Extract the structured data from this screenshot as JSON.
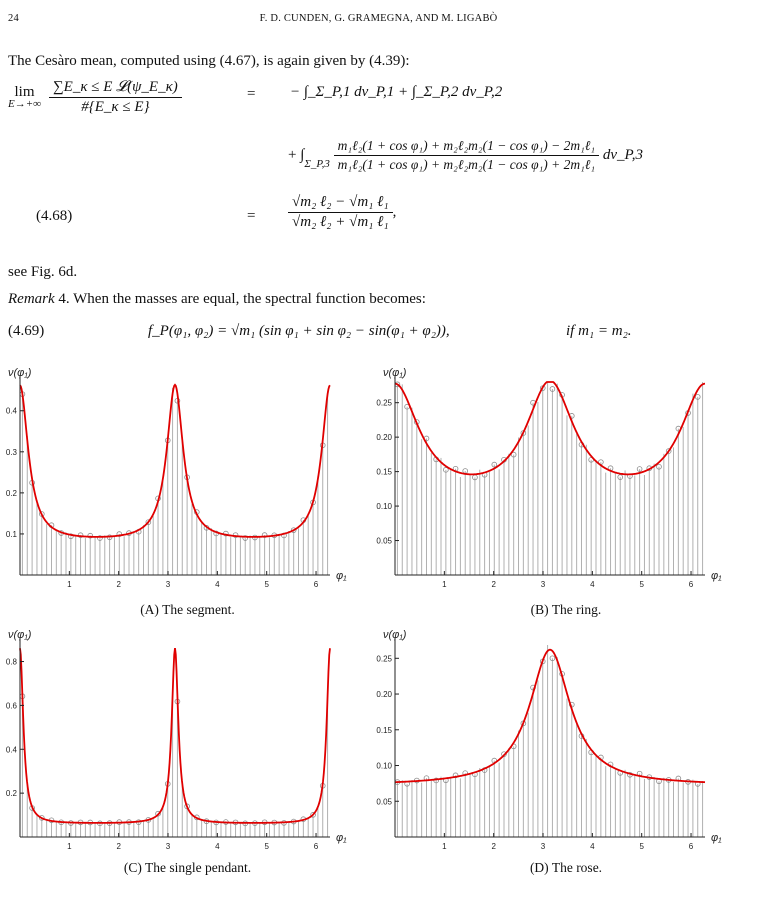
{
  "header": {
    "page_number": "24",
    "running_title": "F. D. CUNDEN, G. GRAMEGNA, AND M. LIGABÒ"
  },
  "text": {
    "intro": "The Cesàro mean, computed using (4.67), is again given by (4.39):",
    "see_fig": "see Fig. 6d.",
    "remark_label": "Remark",
    "remark_number": "4.",
    "remark_text": "When the masses are equal, the spectral function becomes:"
  },
  "equations": {
    "eq468": {
      "number": "(4.68)",
      "lim": "lim",
      "lim_sub": "E→+∞",
      "lhs_num": "∑E_κ ≤ E 𝓛(ψ_E_κ)",
      "lhs_den": "#{E_κ ≤ E}",
      "eq": "=",
      "term1": "− ∫_Σ_P,1 dν_P,1 + ∫_Σ_P,2 dν_P,2",
      "term2_num": "m₁ℓ₂(1 + cos φ₁) + m₂ℓ₂m₂(1 − cos φ₁) − 2m₁ℓ₁",
      "term2_den": "m₁ℓ₂(1 + cos φ₁) + m₂ℓ₂m₂(1 − cos φ₁) + 2m₁ℓ₁",
      "term2_tail": "dν_P,3",
      "result_num": "√m₂ ℓ₂ − √m₁ ℓ₁",
      "result_den": "√m₂ ℓ₂ + √m₁ ℓ₁"
    },
    "eq469": {
      "number": "(4.69)",
      "body": "f_P(φ₁, φ₂) = √m₁ (sin φ₁ + sin φ₂ − sin(φ₁ + φ₂)),",
      "condition": "if m₁ = m₂."
    }
  },
  "figures": {
    "y_axis_label": "ν(φ₁)",
    "x_axis_label": "φ₁",
    "captions": {
      "a_label": "(A)",
      "a_text": "The segment.",
      "b_label": "(B)",
      "b_text": "The ring.",
      "c_label": "(C)",
      "c_text": "The single pendant.",
      "d_label": "(D)",
      "d_text": "The rose."
    }
  },
  "chart_data": [
    {
      "type": "bar",
      "name": "segment",
      "xlabel": "φ₁",
      "ylabel": "ν(φ₁)",
      "xlim": [
        0,
        6.283
      ],
      "ylim": [
        0,
        0.47
      ],
      "x_ticks": [
        1,
        2,
        3,
        4,
        5,
        6
      ],
      "y_ticks": [
        0.1,
        0.2,
        0.3,
        0.4
      ],
      "curve": {
        "kind": "peaks",
        "base": 0.08,
        "amp": 0.38,
        "width": 0.2
      },
      "histogram": {
        "bins": 64,
        "color": "#b0b0b0"
      },
      "line_color": "#e00000"
    },
    {
      "type": "bar",
      "name": "ring",
      "xlabel": "φ₁",
      "ylabel": "ν(φ₁)",
      "xlim": [
        0,
        6.283
      ],
      "ylim": [
        0,
        0.28
      ],
      "x_ticks": [
        1,
        2,
        3,
        4,
        5,
        6
      ],
      "y_ticks": [
        0.05,
        0.1,
        0.15,
        0.2,
        0.25
      ],
      "curve": {
        "kind": "peaks",
        "base": 0.1,
        "amp": 0.17,
        "width": 0.6
      },
      "histogram": {
        "bins": 64,
        "color": "#b0b0b0"
      },
      "line_color": "#e00000"
    },
    {
      "type": "bar",
      "name": "single pendant",
      "xlabel": "φ₁",
      "ylabel": "ν(φ₁)",
      "xlim": [
        0,
        6.283
      ],
      "ylim": [
        0,
        0.88
      ],
      "x_ticks": [
        1,
        2,
        3,
        4,
        5,
        6
      ],
      "y_ticks": [
        0.2,
        0.4,
        0.6,
        0.8
      ],
      "curve": {
        "kind": "peaks",
        "base": 0.06,
        "amp": 0.8,
        "width": 0.08
      },
      "histogram": {
        "bins": 64,
        "color": "#b0b0b0"
      },
      "line_color": "#e00000"
    },
    {
      "type": "bar",
      "name": "rose",
      "xlabel": "φ₁",
      "ylabel": "ν(φ₁)",
      "xlim": [
        0,
        6.283
      ],
      "ylim": [
        0,
        0.27
      ],
      "x_ticks": [
        1,
        2,
        3,
        4,
        5,
        6
      ],
      "y_ticks": [
        0.05,
        0.1,
        0.15,
        0.2,
        0.25
      ],
      "curve": {
        "kind": "single",
        "base": 0.072,
        "amp": 0.19,
        "width": 0.5
      },
      "histogram": {
        "bins": 64,
        "color": "#b0b0b0"
      },
      "line_color": "#e00000"
    }
  ]
}
